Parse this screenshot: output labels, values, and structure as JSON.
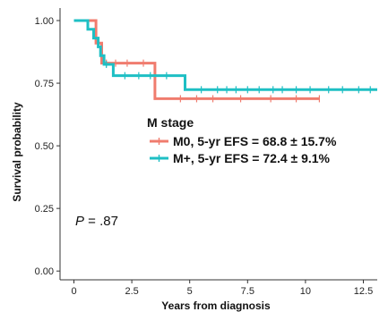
{
  "chart_data": {
    "type": "line",
    "xlabel": "Years from diagnosis",
    "ylabel": "Survival probability",
    "xlim": [
      -0.6,
      13.1
    ],
    "ylim": [
      -0.035,
      1.05
    ],
    "x_ticks": [
      0,
      2.5,
      5,
      7.5,
      10,
      12.5
    ],
    "x_tick_labels": [
      "0",
      "2.5",
      "5",
      "7.5",
      "10",
      "12.5"
    ],
    "y_ticks": [
      0,
      0.25,
      0.5,
      0.75,
      1
    ],
    "y_tick_labels": [
      "0.00",
      "0.25",
      "0.50",
      "0.75",
      "1.00"
    ],
    "grid": false,
    "legend": {
      "title": "M stage",
      "placement": "center-right",
      "prefix": ""
    },
    "annotation": {
      "p_italic": "P",
      "p_value": " = .87"
    },
    "series": [
      {
        "name": "M0, 5-yr EFS = 68.8 ± 15.7%",
        "color": "#F07C6E",
        "steps": [
          [
            0,
            1.0
          ],
          [
            0.95,
            1.0
          ],
          [
            0.95,
            0.91
          ],
          [
            1.2,
            0.91
          ],
          [
            1.2,
            0.83
          ],
          [
            3.5,
            0.83
          ],
          [
            3.5,
            0.688
          ],
          [
            10.6,
            0.688
          ]
        ],
        "censor_x": [
          1.4,
          1.8,
          2.3,
          3.0,
          4.6,
          5.3,
          6.0,
          7.2,
          8.5,
          9.6,
          10.6
        ]
      },
      {
        "name": "M+, 5-yr EFS = 72.4 ± 9.1%",
        "color": "#1EBFC4",
        "steps": [
          [
            0,
            1.0
          ],
          [
            0.6,
            1.0
          ],
          [
            0.6,
            0.965
          ],
          [
            0.85,
            0.965
          ],
          [
            0.85,
            0.93
          ],
          [
            1.05,
            0.93
          ],
          [
            1.05,
            0.895
          ],
          [
            1.15,
            0.895
          ],
          [
            1.15,
            0.86
          ],
          [
            1.3,
            0.86
          ],
          [
            1.3,
            0.825
          ],
          [
            1.7,
            0.825
          ],
          [
            1.7,
            0.78
          ],
          [
            4.8,
            0.78
          ],
          [
            4.8,
            0.724
          ],
          [
            13.1,
            0.724
          ]
        ],
        "censor_x": [
          1.4,
          2.2,
          2.8,
          3.3,
          4.0,
          5.5,
          6.2,
          6.6,
          7.0,
          7.5,
          8.0,
          8.6,
          9.0,
          9.6,
          10.2,
          11.0,
          11.6,
          12.3,
          12.8
        ]
      }
    ]
  }
}
